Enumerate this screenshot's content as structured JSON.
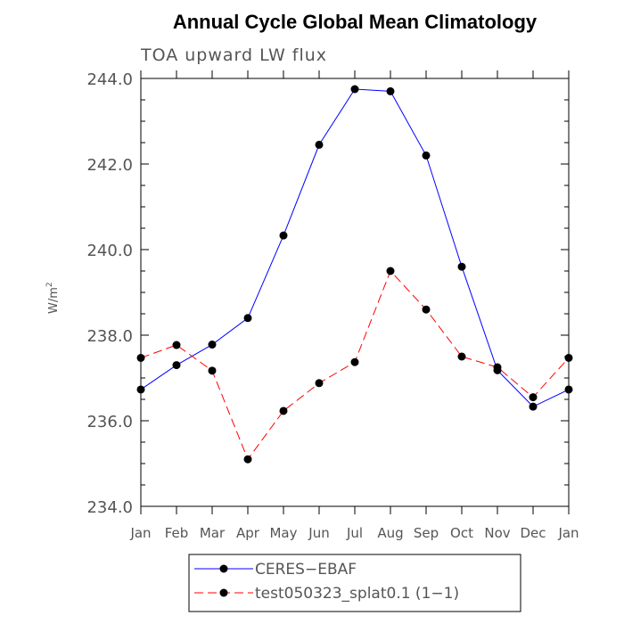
{
  "chart_data": {
    "type": "line",
    "title": "Annual Cycle Global Mean Climatology",
    "subtitle": "TOA upward LW flux",
    "ylabel": "W/m",
    "ylabel_sup": "2",
    "ylim": [
      234.0,
      244.0
    ],
    "yticks": [
      234.0,
      236.0,
      238.0,
      240.0,
      242.0,
      244.0
    ],
    "ytick_labels": [
      "234.0",
      "236.0",
      "238.0",
      "240.0",
      "242.0",
      "244.0"
    ],
    "categories": [
      "Jan",
      "Feb",
      "Mar",
      "Apr",
      "May",
      "Jun",
      "Jul",
      "Aug",
      "Sep",
      "Oct",
      "Nov",
      "Dec",
      "Jan"
    ],
    "series": [
      {
        "name": "CERES−EBAF",
        "color": "#0000ff",
        "dash": "solid",
        "values": [
          236.73,
          237.3,
          237.78,
          238.4,
          240.33,
          242.45,
          243.75,
          243.7,
          242.2,
          239.6,
          237.18,
          236.33,
          236.73
        ]
      },
      {
        "name": "test050323_splat0.1 (1−1)",
        "color": "#ff0000",
        "dash": "dashed",
        "values": [
          237.47,
          237.77,
          237.17,
          235.1,
          236.23,
          236.88,
          237.37,
          239.5,
          238.6,
          237.5,
          237.25,
          236.55,
          237.47
        ]
      }
    ]
  }
}
